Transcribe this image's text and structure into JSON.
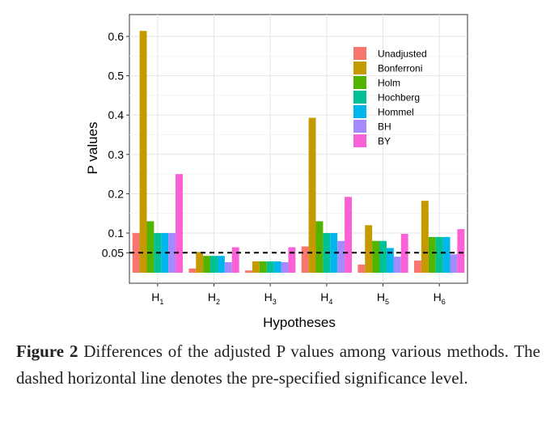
{
  "chart_data": {
    "type": "bar",
    "xlabel": "Hypotheses",
    "ylabel": "P values",
    "ylim": [
      0,
      0.65
    ],
    "y_ticks": [
      "0.05",
      "0.1",
      "0.2",
      "0.3",
      "0.4",
      "0.5",
      "0.6"
    ],
    "y_tick_values": [
      0.05,
      0.1,
      0.2,
      0.3,
      0.4,
      0.5,
      0.6
    ],
    "categories": [
      {
        "main": "H",
        "sub": "1"
      },
      {
        "main": "H",
        "sub": "2"
      },
      {
        "main": "H",
        "sub": "3"
      },
      {
        "main": "H",
        "sub": "4"
      },
      {
        "main": "H",
        "sub": "5"
      },
      {
        "main": "H",
        "sub": "6"
      }
    ],
    "reference_line": {
      "value": 0.05,
      "style": "dashed"
    },
    "grid": true,
    "legend_position": "top-right",
    "series": [
      {
        "name": "Unadjusted",
        "color": "#F8766D",
        "values": [
          0.1,
          0.01,
          0.005,
          0.066,
          0.02,
          0.03
        ]
      },
      {
        "name": "Bonferroni",
        "color": "#C49A00",
        "values": [
          0.614,
          0.052,
          0.028,
          0.393,
          0.12,
          0.182
        ]
      },
      {
        "name": "Holm",
        "color": "#53B400",
        "values": [
          0.13,
          0.042,
          0.028,
          0.13,
          0.08,
          0.09
        ]
      },
      {
        "name": "Hochberg",
        "color": "#00C094",
        "values": [
          0.1,
          0.042,
          0.028,
          0.1,
          0.08,
          0.09
        ]
      },
      {
        "name": "Hommel",
        "color": "#00B6EB",
        "values": [
          0.1,
          0.042,
          0.028,
          0.1,
          0.062,
          0.09
        ]
      },
      {
        "name": "BH",
        "color": "#A58AFF",
        "values": [
          0.1,
          0.026,
          0.026,
          0.08,
          0.04,
          0.046
        ]
      },
      {
        "name": "BY",
        "color": "#FB61D7",
        "values": [
          0.25,
          0.064,
          0.064,
          0.192,
          0.098,
          0.11
        ]
      }
    ]
  },
  "caption": {
    "label": "Figure 2",
    "text": " Differences of the adjusted P values among various methods. The dashed horizontal line denotes the pre-specified significance level."
  }
}
